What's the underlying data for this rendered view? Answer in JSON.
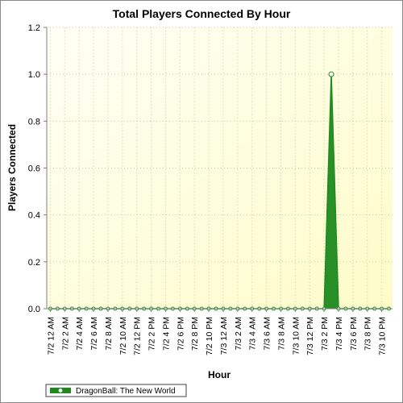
{
  "chart_data": {
    "type": "area",
    "title": "Total Players Connected By Hour",
    "xlabel": "Hour",
    "ylabel": "Players Connected",
    "ylim": [
      0,
      1.2
    ],
    "yticks": [
      "0.0",
      "0.2",
      "0.4",
      "0.6",
      "0.8",
      "1.0",
      "1.2"
    ],
    "grid": true,
    "legend_position": "bottom-left",
    "x_tick_labels": [
      "7/2 12 AM",
      "7/2 2 AM",
      "7/2 4 AM",
      "7/2 6 AM",
      "7/2 8 AM",
      "7/2 10 AM",
      "7/2 12 PM",
      "7/2 2 PM",
      "7/2 4 PM",
      "7/2 6 PM",
      "7/2 8 PM",
      "7/2 10 PM",
      "7/3 12 AM",
      "7/3 2 AM",
      "7/3 4 AM",
      "7/3 6 AM",
      "7/3 8 AM",
      "7/3 10 AM",
      "7/3 12 PM",
      "7/3 2 PM",
      "7/3 4 PM",
      "7/3 6 PM",
      "7/3 8 PM",
      "7/3 10 PM"
    ],
    "series": [
      {
        "name": "DragonBall: The New World",
        "color": "#1e8a1e",
        "x": [
          "7/2 12 AM",
          "7/2 1 AM",
          "7/2 2 AM",
          "7/2 3 AM",
          "7/2 4 AM",
          "7/2 5 AM",
          "7/2 6 AM",
          "7/2 7 AM",
          "7/2 8 AM",
          "7/2 9 AM",
          "7/2 10 AM",
          "7/2 11 AM",
          "7/2 12 PM",
          "7/2 1 PM",
          "7/2 2 PM",
          "7/2 3 PM",
          "7/2 4 PM",
          "7/2 5 PM",
          "7/2 6 PM",
          "7/2 7 PM",
          "7/2 8 PM",
          "7/2 9 PM",
          "7/2 10 PM",
          "7/2 11 PM",
          "7/3 12 AM",
          "7/3 1 AM",
          "7/3 2 AM",
          "7/3 3 AM",
          "7/3 4 AM",
          "7/3 5 AM",
          "7/3 6 AM",
          "7/3 7 AM",
          "7/3 8 AM",
          "7/3 9 AM",
          "7/3 10 AM",
          "7/3 11 AM",
          "7/3 12 PM",
          "7/3 1 PM",
          "7/3 2 PM",
          "7/3 3 PM",
          "7/3 4 PM",
          "7/3 5 PM",
          "7/3 6 PM",
          "7/3 7 PM",
          "7/3 8 PM",
          "7/3 9 PM",
          "7/3 10 PM",
          "7/3 11 PM"
        ],
        "values": [
          0,
          0,
          0,
          0,
          0,
          0,
          0,
          0,
          0,
          0,
          0,
          0,
          0,
          0,
          0,
          0,
          0,
          0,
          0,
          0,
          0,
          0,
          0,
          0,
          0,
          0,
          0,
          0,
          0,
          0,
          0,
          0,
          0,
          0,
          0,
          0,
          0,
          0,
          0,
          1,
          0,
          0,
          0,
          0,
          0,
          0,
          0,
          0
        ]
      }
    ]
  }
}
